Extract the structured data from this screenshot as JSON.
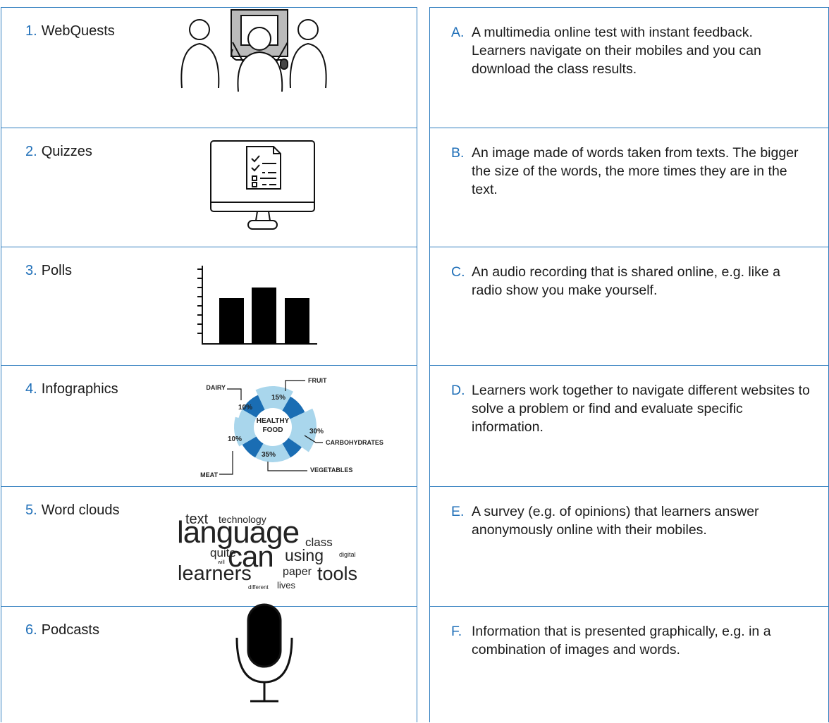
{
  "items": [
    {
      "number": "1.",
      "label": "WebQuests"
    },
    {
      "number": "2.",
      "label": "Quizzes"
    },
    {
      "number": "3.",
      "label": "Polls"
    },
    {
      "number": "4.",
      "label": "Infographics"
    },
    {
      "number": "5.",
      "label": "Word clouds"
    },
    {
      "number": "6.",
      "label": "Podcasts"
    }
  ],
  "definitions": [
    {
      "letter": "A.",
      "text": "A multimedia online test with instant feedback. Learners navigate on their mobiles and you can download the class results."
    },
    {
      "letter": "B.",
      "text": "An image made of words taken from texts. The bigger the size of the words, the more times they are in the text."
    },
    {
      "letter": "C.",
      "text": "An audio recording that is shared online, e.g. like a radio show you make yourself."
    },
    {
      "letter": "D.",
      "text": "Learners work together to navigate different websites to solve a problem or find and evaluate specific information."
    },
    {
      "letter": "E.",
      "text": "A survey (e.g. of opinions) that learners answer anonymously online with their mobiles."
    },
    {
      "letter": "F.",
      "text": "Information that is presented graphically, e.g. in a combination of images and words."
    }
  ],
  "infographic": {
    "center": [
      "HEALTHY",
      "FOOD"
    ],
    "segments": [
      {
        "name": "DAIRY",
        "share": "10%"
      },
      {
        "name": "FRUIT",
        "share": "15%"
      },
      {
        "name": "CARBOHYDRATES",
        "share": "30%"
      },
      {
        "name": "VEGETABLES",
        "share": "35%"
      },
      {
        "name": "MEAT",
        "share": "10%"
      }
    ]
  },
  "word_cloud": [
    "text",
    "technology",
    "language",
    "class",
    "quite",
    "can",
    "using",
    "digital",
    "will",
    "learners",
    "paper",
    "tools",
    "different",
    "lives"
  ]
}
